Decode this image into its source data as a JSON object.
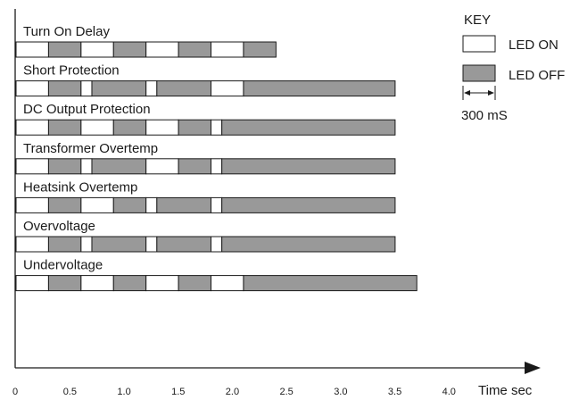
{
  "diagram": {
    "time_unit_label": "Time sec",
    "time_ticks": [
      "0",
      "0.5",
      "1.0",
      "1.5",
      "2.0",
      "2.5",
      "3.0",
      "3.5",
      "4.0"
    ],
    "time_tick_values": [
      0,
      0.5,
      1.0,
      1.5,
      2.0,
      2.5,
      3.0,
      3.5,
      4.0
    ],
    "time_range": [
      0,
      4.15
    ],
    "colors": {
      "on": "#ffffff",
      "off": "#999999",
      "stroke": "#1a1a1a"
    },
    "key": {
      "title": "KEY",
      "on_label": "LED ON",
      "off_label": "LED OFF",
      "duration_label": "300 mS"
    },
    "rows": [
      {
        "label": "Turn On Delay",
        "segments": [
          {
            "start": 0.0,
            "end": 0.3,
            "state": "on"
          },
          {
            "start": 0.3,
            "end": 0.6,
            "state": "off"
          },
          {
            "start": 0.6,
            "end": 0.9,
            "state": "on"
          },
          {
            "start": 0.9,
            "end": 1.2,
            "state": "off"
          },
          {
            "start": 1.2,
            "end": 1.5,
            "state": "on"
          },
          {
            "start": 1.5,
            "end": 1.8,
            "state": "off"
          },
          {
            "start": 1.8,
            "end": 2.1,
            "state": "on"
          },
          {
            "start": 2.1,
            "end": 2.4,
            "state": "off"
          }
        ]
      },
      {
        "label": "Short Protection",
        "segments": [
          {
            "start": 0.0,
            "end": 0.3,
            "state": "on"
          },
          {
            "start": 0.3,
            "end": 0.6,
            "state": "off"
          },
          {
            "start": 0.6,
            "end": 0.7,
            "state": "on"
          },
          {
            "start": 0.7,
            "end": 1.2,
            "state": "off"
          },
          {
            "start": 1.2,
            "end": 1.3,
            "state": "on"
          },
          {
            "start": 1.3,
            "end": 1.8,
            "state": "off"
          },
          {
            "start": 1.8,
            "end": 2.1,
            "state": "on"
          },
          {
            "start": 2.1,
            "end": 3.5,
            "state": "off"
          }
        ]
      },
      {
        "label": "DC Output Protection",
        "segments": [
          {
            "start": 0.0,
            "end": 0.3,
            "state": "on"
          },
          {
            "start": 0.3,
            "end": 0.6,
            "state": "off"
          },
          {
            "start": 0.6,
            "end": 0.9,
            "state": "on"
          },
          {
            "start": 0.9,
            "end": 1.2,
            "state": "off"
          },
          {
            "start": 1.2,
            "end": 1.5,
            "state": "on"
          },
          {
            "start": 1.5,
            "end": 1.8,
            "state": "off"
          },
          {
            "start": 1.8,
            "end": 1.9,
            "state": "on"
          },
          {
            "start": 1.9,
            "end": 3.5,
            "state": "off"
          }
        ]
      },
      {
        "label": "Transformer Overtemp",
        "segments": [
          {
            "start": 0.0,
            "end": 0.3,
            "state": "on"
          },
          {
            "start": 0.3,
            "end": 0.6,
            "state": "off"
          },
          {
            "start": 0.6,
            "end": 0.7,
            "state": "on"
          },
          {
            "start": 0.7,
            "end": 1.2,
            "state": "off"
          },
          {
            "start": 1.2,
            "end": 1.5,
            "state": "on"
          },
          {
            "start": 1.5,
            "end": 1.8,
            "state": "off"
          },
          {
            "start": 1.8,
            "end": 1.9,
            "state": "on"
          },
          {
            "start": 1.9,
            "end": 3.5,
            "state": "off"
          }
        ]
      },
      {
        "label": "Heatsink Overtemp",
        "segments": [
          {
            "start": 0.0,
            "end": 0.3,
            "state": "on"
          },
          {
            "start": 0.3,
            "end": 0.6,
            "state": "off"
          },
          {
            "start": 0.6,
            "end": 0.9,
            "state": "on"
          },
          {
            "start": 0.9,
            "end": 1.2,
            "state": "off"
          },
          {
            "start": 1.2,
            "end": 1.3,
            "state": "on"
          },
          {
            "start": 1.3,
            "end": 1.8,
            "state": "off"
          },
          {
            "start": 1.8,
            "end": 1.9,
            "state": "on"
          },
          {
            "start": 1.9,
            "end": 3.5,
            "state": "off"
          }
        ]
      },
      {
        "label": "Overvoltage",
        "segments": [
          {
            "start": 0.0,
            "end": 0.3,
            "state": "on"
          },
          {
            "start": 0.3,
            "end": 0.6,
            "state": "off"
          },
          {
            "start": 0.6,
            "end": 0.7,
            "state": "on"
          },
          {
            "start": 0.7,
            "end": 1.2,
            "state": "off"
          },
          {
            "start": 1.2,
            "end": 1.3,
            "state": "on"
          },
          {
            "start": 1.3,
            "end": 1.8,
            "state": "off"
          },
          {
            "start": 1.8,
            "end": 1.9,
            "state": "on"
          },
          {
            "start": 1.9,
            "end": 3.5,
            "state": "off"
          }
        ]
      },
      {
        "label": "Undervoltage",
        "segments": [
          {
            "start": 0.0,
            "end": 0.3,
            "state": "on"
          },
          {
            "start": 0.3,
            "end": 0.6,
            "state": "off"
          },
          {
            "start": 0.6,
            "end": 0.9,
            "state": "on"
          },
          {
            "start": 0.9,
            "end": 1.2,
            "state": "off"
          },
          {
            "start": 1.2,
            "end": 1.5,
            "state": "on"
          },
          {
            "start": 1.5,
            "end": 1.8,
            "state": "off"
          },
          {
            "start": 1.8,
            "end": 2.1,
            "state": "on"
          },
          {
            "start": 2.1,
            "end": 3.7,
            "state": "off"
          }
        ]
      }
    ]
  }
}
